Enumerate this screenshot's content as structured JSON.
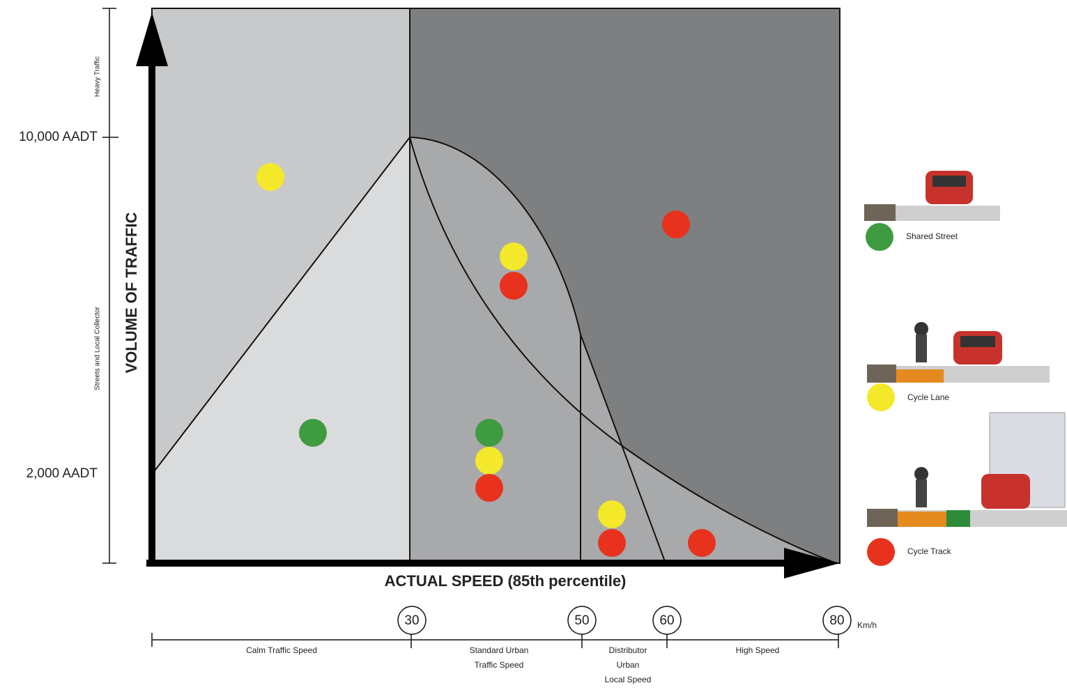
{
  "axes": {
    "y_label": "VOLUME OF TRAFFIC",
    "x_label": "ACTUAL SPEED (85th percentile)",
    "y_ticks": [
      "10,000 AADT",
      "2,000 AADT"
    ],
    "y_bands": [
      "Heavy Traffic",
      "Streets and Local Collector"
    ]
  },
  "speed_scale": {
    "ticks": [
      "30",
      "50",
      "60",
      "80"
    ],
    "unit": "Km/h",
    "zones": [
      [
        "Calm Traffic Speed"
      ],
      [
        "Standard Urban",
        "Traffic Speed"
      ],
      [
        "Distributor",
        "Urban",
        "Local Speed"
      ],
      [
        "High Speed"
      ]
    ]
  },
  "legend": [
    {
      "label": "Shared Street"
    },
    {
      "label": "Cycle Lane"
    },
    {
      "label": "Cycle Track"
    }
  ]
}
